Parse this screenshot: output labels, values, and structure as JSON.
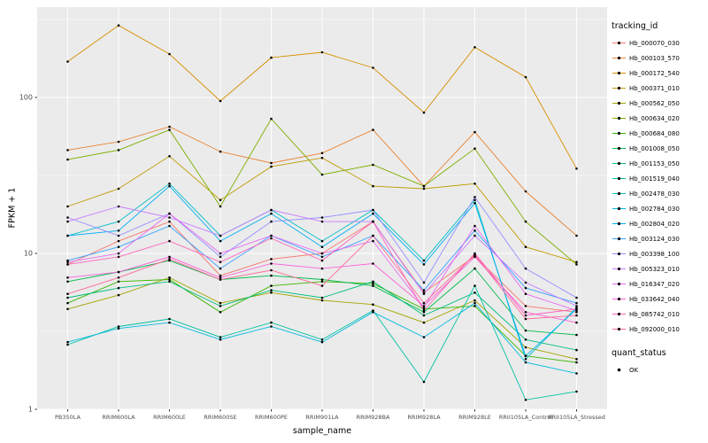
{
  "figure": {
    "panel_bg": "#EBEBEB",
    "grid_color": "#FFFFFF",
    "axis_text_color": "#4D4D4D",
    "tick_color": "#333333",
    "xlabel": "sample_name",
    "ylabel": "FPKM + 1"
  },
  "legend": {
    "tracking_title": "tracking_id",
    "quant_title": "quant_status",
    "quant_items": [
      {
        "label": "OK",
        "color": "#000000"
      }
    ]
  },
  "chart_data": {
    "type": "line",
    "y_scale": "log10",
    "grid": true,
    "legend_position": "right",
    "x_categories": [
      "PB350LA",
      "RRIM600LA",
      "RRIM600LE",
      "RRIM600SE",
      "RRIM600PE",
      "RRIM901LA",
      "RRIM928BA",
      "RRIM928LA",
      "RRIM928LE",
      "RRII105LA_Control",
      "RRII105LA_Stressed"
    ],
    "y_ticks": [
      1,
      10,
      100
    ],
    "y_tick_labels": [
      "1",
      "10",
      "100"
    ],
    "y_minor": [
      3.1623,
      31.623,
      316.23
    ],
    "ylim": [
      1,
      380
    ],
    "series": [
      {
        "name": "Hb_000070_030",
        "color": "#F8766D",
        "values": [
          8.5,
          12,
          16,
          7.2,
          9.2,
          10,
          16,
          5.6,
          9.6,
          4.6,
          4.2
        ]
      },
      {
        "name": "Hb_000103_570",
        "color": "#EA8331",
        "values": [
          46,
          52,
          65,
          45,
          38,
          44,
          62,
          27,
          60,
          25,
          13
        ]
      },
      {
        "name": "Hb_000172_540",
        "color": "#D89000",
        "values": [
          170,
          290,
          190,
          95,
          180,
          195,
          155,
          80,
          210,
          135,
          35
        ]
      },
      {
        "name": "Hb_000371_010",
        "color": "#C09B00",
        "values": [
          20,
          26,
          42,
          22,
          36,
          41,
          27,
          26,
          28,
          11,
          8.8
        ]
      },
      {
        "name": "Hb_000562_050",
        "color": "#A3A500",
        "values": [
          4.4,
          5.4,
          7.0,
          4.8,
          5.6,
          5.0,
          4.7,
          3.6,
          5.0,
          2.5,
          2.1
        ]
      },
      {
        "name": "Hb_000634_020",
        "color": "#7CAE00",
        "values": [
          40,
          46,
          62,
          20,
          73,
          32,
          37,
          27,
          47,
          16,
          8.5
        ]
      },
      {
        "name": "Hb_000684_080",
        "color": "#39B600",
        "values": [
          4.8,
          6.6,
          6.8,
          4.2,
          6.2,
          6.6,
          6.4,
          4.4,
          4.6,
          2.2,
          2.0
        ]
      },
      {
        "name": "Hb_001008_050",
        "color": "#00BB4E",
        "values": [
          6.6,
          7.6,
          9.0,
          6.8,
          7.2,
          6.8,
          6.2,
          4.2,
          8.0,
          3.2,
          3.0
        ]
      },
      {
        "name": "Hb_001153_050",
        "color": "#00BF7D",
        "values": [
          5.2,
          6.0,
          6.6,
          4.6,
          5.8,
          5.2,
          6.6,
          4.0,
          5.6,
          2.8,
          2.4
        ]
      },
      {
        "name": "Hb_001519_040",
        "color": "#00C1A3",
        "values": [
          2.6,
          3.4,
          3.8,
          2.9,
          3.6,
          2.8,
          4.3,
          1.5,
          6.2,
          1.15,
          1.3
        ]
      },
      {
        "name": "Hb_002478_030",
        "color": "#00BFC4",
        "values": [
          13,
          16,
          28,
          13,
          19,
          12,
          19,
          9.0,
          22,
          2.1,
          4.5
        ]
      },
      {
        "name": "Hb_002784_030",
        "color": "#00BAE0",
        "values": [
          2.7,
          3.3,
          3.6,
          2.8,
          3.4,
          2.7,
          4.2,
          2.9,
          4.8,
          2.0,
          1.7
        ]
      },
      {
        "name": "Hb_002804_020",
        "color": "#00B0F6",
        "values": [
          13,
          14,
          27,
          12,
          18,
          11,
          18,
          8.5,
          21,
          2.2,
          4.4
        ]
      },
      {
        "name": "Hb_003124_030",
        "color": "#35A2FF",
        "values": [
          9.0,
          11,
          15,
          8.0,
          13,
          9.5,
          13,
          5.8,
          14,
          6.0,
          4.8
        ]
      },
      {
        "name": "Hb_003398_100",
        "color": "#9590FF",
        "values": [
          17,
          13,
          18,
          9.5,
          16,
          17,
          19,
          6.5,
          23,
          8.0,
          5.2
        ]
      },
      {
        "name": "Hb_005323_010",
        "color": "#C77CFF",
        "values": [
          16,
          20,
          17,
          13,
          19,
          16,
          16,
          5.5,
          13,
          6.5,
          4.6
        ]
      },
      {
        "name": "Hb_016347_020",
        "color": "#E76BF3",
        "values": [
          8.8,
          10,
          18,
          10,
          13,
          10,
          12,
          4.5,
          15,
          5.5,
          4.3
        ]
      },
      {
        "name": "Hb_033642_040",
        "color": "#FA62DB",
        "values": [
          7.0,
          7.6,
          9.5,
          7.0,
          8.6,
          8.0,
          8.6,
          4.6,
          9.5,
          4.2,
          3.6
        ]
      },
      {
        "name": "Hb_085742_010",
        "color": "#FF62BC",
        "values": [
          8.5,
          9.5,
          12,
          8.8,
          12.5,
          9.0,
          16,
          4.3,
          10,
          4.0,
          4.4
        ]
      },
      {
        "name": "Hb_092000_010",
        "color": "#FF6A98",
        "values": [
          5.5,
          7.0,
          9.2,
          6.8,
          7.8,
          6.2,
          13,
          4.8,
          9.8,
          3.8,
          4.0
        ]
      }
    ]
  }
}
